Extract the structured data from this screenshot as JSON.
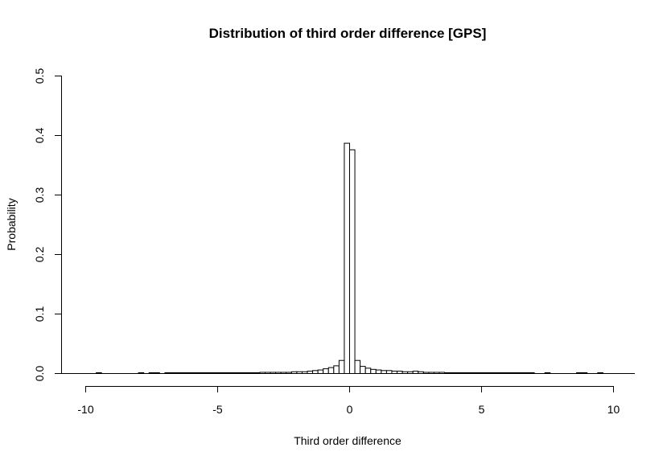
{
  "chart_data": {
    "type": "bar",
    "title": "Distribution of third order difference [GPS]",
    "xlabel": "Third order difference",
    "ylabel": "Probability",
    "xlim": [
      -10,
      10
    ],
    "ylim": [
      0,
      0.5
    ],
    "bin_width": 0.2,
    "x_ticks": [
      -10,
      -5,
      0,
      5,
      10
    ],
    "x_tick_labels": [
      "-10",
      "-5",
      "0",
      "5",
      "10"
    ],
    "y_ticks": [
      0,
      0.1,
      0.2,
      0.3,
      0.4,
      0.5
    ],
    "y_tick_labels": [
      "0.0",
      "0.1",
      "0.2",
      "0.3",
      "0.4",
      "0.5"
    ],
    "grid": false,
    "legend": "none",
    "bar_fill": "#ffffff",
    "bar_stroke": "#000000",
    "bins": [
      {
        "x0": -9.6,
        "x1": -9.4,
        "value": 0.0008
      },
      {
        "x0": -8.0,
        "x1": -7.8,
        "value": 0.0008
      },
      {
        "x0": -7.6,
        "x1": -7.4,
        "value": 0.0008
      },
      {
        "x0": -7.4,
        "x1": -7.2,
        "value": 0.0008
      },
      {
        "x0": -7.0,
        "x1": -6.8,
        "value": 0.0008
      },
      {
        "x0": -6.8,
        "x1": -6.6,
        "value": 0.0008
      },
      {
        "x0": -6.6,
        "x1": -6.4,
        "value": 0.0008
      },
      {
        "x0": -6.4,
        "x1": -6.2,
        "value": 0.0008
      },
      {
        "x0": -6.2,
        "x1": -6.0,
        "value": 0.0008
      },
      {
        "x0": -6.0,
        "x1": -5.8,
        "value": 0.0008
      },
      {
        "x0": -5.8,
        "x1": -5.6,
        "value": 0.0008
      },
      {
        "x0": -5.6,
        "x1": -5.4,
        "value": 0.0008
      },
      {
        "x0": -5.4,
        "x1": -5.2,
        "value": 0.0008
      },
      {
        "x0": -5.2,
        "x1": -5.0,
        "value": 0.0008
      },
      {
        "x0": -5.0,
        "x1": -4.8,
        "value": 0.0008
      },
      {
        "x0": -4.8,
        "x1": -4.6,
        "value": 0.0008
      },
      {
        "x0": -4.6,
        "x1": -4.4,
        "value": 0.0008
      },
      {
        "x0": -4.4,
        "x1": -4.2,
        "value": 0.0008
      },
      {
        "x0": -4.2,
        "x1": -4.0,
        "value": 0.0008
      },
      {
        "x0": -4.0,
        "x1": -3.8,
        "value": 0.0008
      },
      {
        "x0": -3.8,
        "x1": -3.6,
        "value": 0.0008
      },
      {
        "x0": -3.6,
        "x1": -3.4,
        "value": 0.0008
      },
      {
        "x0": -3.4,
        "x1": -3.2,
        "value": 0.002
      },
      {
        "x0": -3.2,
        "x1": -3.0,
        "value": 0.002
      },
      {
        "x0": -3.0,
        "x1": -2.8,
        "value": 0.002
      },
      {
        "x0": -2.8,
        "x1": -2.6,
        "value": 0.002
      },
      {
        "x0": -2.6,
        "x1": -2.4,
        "value": 0.002
      },
      {
        "x0": -2.4,
        "x1": -2.2,
        "value": 0.002
      },
      {
        "x0": -2.2,
        "x1": -2.0,
        "value": 0.003
      },
      {
        "x0": -2.0,
        "x1": -1.8,
        "value": 0.003
      },
      {
        "x0": -1.8,
        "x1": -1.6,
        "value": 0.003
      },
      {
        "x0": -1.6,
        "x1": -1.4,
        "value": 0.004
      },
      {
        "x0": -1.4,
        "x1": -1.2,
        "value": 0.005
      },
      {
        "x0": -1.2,
        "x1": -1.0,
        "value": 0.006
      },
      {
        "x0": -1.0,
        "x1": -0.8,
        "value": 0.008
      },
      {
        "x0": -0.8,
        "x1": -0.6,
        "value": 0.01
      },
      {
        "x0": -0.6,
        "x1": -0.4,
        "value": 0.013
      },
      {
        "x0": -0.4,
        "x1": -0.2,
        "value": 0.022
      },
      {
        "x0": -0.2,
        "x1": 0.0,
        "value": 0.387
      },
      {
        "x0": 0.0,
        "x1": 0.2,
        "value": 0.376
      },
      {
        "x0": 0.2,
        "x1": 0.4,
        "value": 0.022
      },
      {
        "x0": 0.4,
        "x1": 0.6,
        "value": 0.012
      },
      {
        "x0": 0.6,
        "x1": 0.8,
        "value": 0.009
      },
      {
        "x0": 0.8,
        "x1": 1.0,
        "value": 0.007
      },
      {
        "x0": 1.0,
        "x1": 1.2,
        "value": 0.006
      },
      {
        "x0": 1.2,
        "x1": 1.4,
        "value": 0.005
      },
      {
        "x0": 1.4,
        "x1": 1.6,
        "value": 0.005
      },
      {
        "x0": 1.6,
        "x1": 1.8,
        "value": 0.004
      },
      {
        "x0": 1.8,
        "x1": 2.0,
        "value": 0.004
      },
      {
        "x0": 2.0,
        "x1": 2.2,
        "value": 0.003
      },
      {
        "x0": 2.2,
        "x1": 2.4,
        "value": 0.003
      },
      {
        "x0": 2.4,
        "x1": 2.6,
        "value": 0.004
      },
      {
        "x0": 2.6,
        "x1": 2.8,
        "value": 0.003
      },
      {
        "x0": 2.8,
        "x1": 3.0,
        "value": 0.002
      },
      {
        "x0": 3.0,
        "x1": 3.2,
        "value": 0.002
      },
      {
        "x0": 3.2,
        "x1": 3.4,
        "value": 0.002
      },
      {
        "x0": 3.4,
        "x1": 3.6,
        "value": 0.002
      },
      {
        "x0": 3.6,
        "x1": 3.8,
        "value": 0.001
      },
      {
        "x0": 3.8,
        "x1": 4.0,
        "value": 0.001
      },
      {
        "x0": 4.0,
        "x1": 4.2,
        "value": 0.001
      },
      {
        "x0": 4.2,
        "x1": 4.4,
        "value": 0.001
      },
      {
        "x0": 4.4,
        "x1": 4.6,
        "value": 0.001
      },
      {
        "x0": 4.6,
        "x1": 4.8,
        "value": 0.001
      },
      {
        "x0": 4.8,
        "x1": 5.0,
        "value": 0.001
      },
      {
        "x0": 5.0,
        "x1": 5.2,
        "value": 0.001
      },
      {
        "x0": 5.2,
        "x1": 5.4,
        "value": 0.001
      },
      {
        "x0": 5.4,
        "x1": 5.6,
        "value": 0.001
      },
      {
        "x0": 5.6,
        "x1": 5.8,
        "value": 0.001
      },
      {
        "x0": 5.8,
        "x1": 6.0,
        "value": 0.001
      },
      {
        "x0": 6.0,
        "x1": 6.2,
        "value": 0.001
      },
      {
        "x0": 6.2,
        "x1": 6.4,
        "value": 0.001
      },
      {
        "x0": 6.4,
        "x1": 6.6,
        "value": 0.001
      },
      {
        "x0": 6.6,
        "x1": 6.8,
        "value": 0.001
      },
      {
        "x0": 6.8,
        "x1": 7.0,
        "value": 0.001
      },
      {
        "x0": 7.4,
        "x1": 7.6,
        "value": 0.0008
      },
      {
        "x0": 8.6,
        "x1": 8.8,
        "value": 0.0008
      },
      {
        "x0": 8.8,
        "x1": 9.0,
        "value": 0.0008
      },
      {
        "x0": 9.4,
        "x1": 9.6,
        "value": 0.0008
      }
    ]
  }
}
